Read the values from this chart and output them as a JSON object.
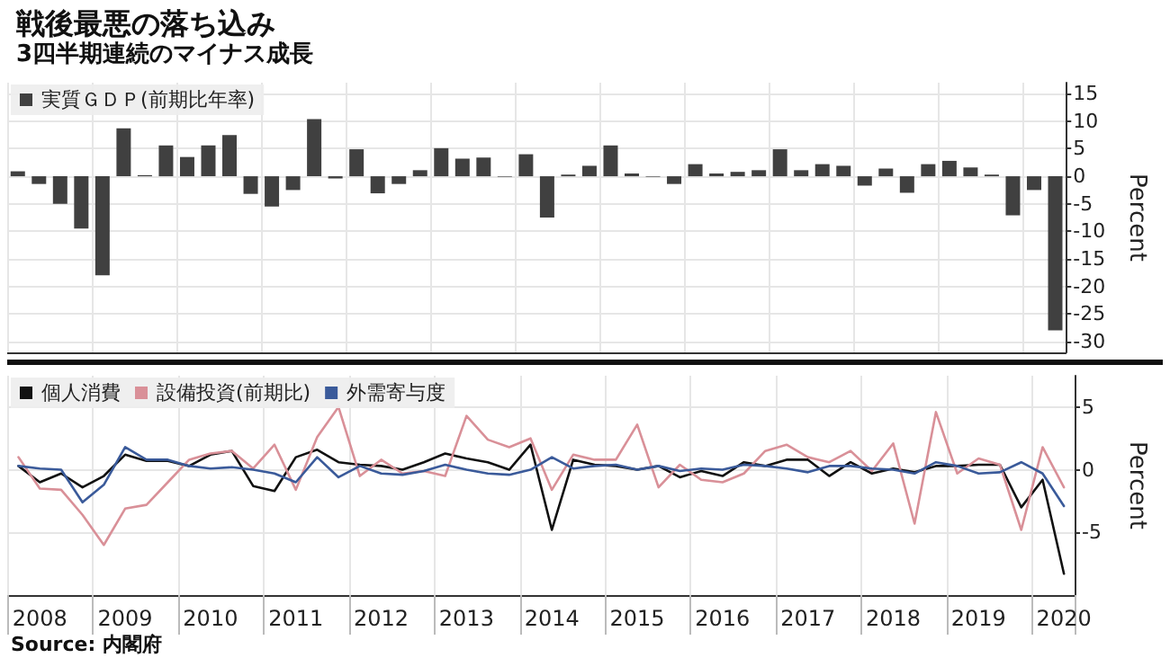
{
  "chart_data": [
    {
      "type": "bar",
      "title": "戦後最悪の落ち込み",
      "subtitle": "3四半期連続のマイナス成長",
      "ylabel": "Percent",
      "categories": [
        null,
        "2008",
        null,
        null,
        null,
        "2009",
        null,
        null,
        null,
        "2010",
        null,
        null,
        null,
        "2011",
        null,
        null,
        null,
        "2012",
        null,
        null,
        null,
        "2013",
        null,
        null,
        null,
        "2014",
        null,
        null,
        null,
        "2015",
        null,
        null,
        null,
        "2016",
        null,
        null,
        null,
        "2017",
        null,
        null,
        null,
        "2018",
        null,
        null,
        null,
        "2019",
        null,
        null,
        null,
        "2020"
      ],
      "series": [
        {
          "name": "実質ＧＤＰ(前期比年率)",
          "color": "#404040",
          "values": [
            0.9,
            -1.4,
            -5,
            -9.5,
            -18,
            8.7,
            0.2,
            5.6,
            3.5,
            5.6,
            7.5,
            -3.2,
            -5.5,
            -2.5,
            10.4,
            -0.4,
            4.9,
            -3.1,
            -1.4,
            1.1,
            5.1,
            3.2,
            3.4,
            -0.1,
            4.0,
            -7.5,
            0.3,
            1.9,
            5.6,
            0.5,
            -0.1,
            -1.4,
            2.2,
            0.5,
            0.8,
            1.1,
            4.9,
            1.1,
            2.2,
            1.9,
            -1.7,
            1.4,
            -3.0,
            2.2,
            2.8,
            1.6,
            0.3,
            -7.1,
            -2.5,
            -28
          ]
        }
      ],
      "ylim": [
        -32,
        17
      ],
      "yticks": [
        15,
        10,
        5,
        0,
        -5,
        -10,
        -15,
        -20,
        -25,
        -30
      ],
      "grid": true,
      "legend": "top left",
      "tick_labels": "y"
    },
    {
      "type": "line",
      "ylabel": "Percent",
      "annotations": [
        "Source: 内閣府"
      ],
      "categories": [
        null,
        "2008",
        null,
        null,
        null,
        "2009",
        null,
        null,
        null,
        "2010",
        null,
        null,
        null,
        "2011",
        null,
        null,
        null,
        "2012",
        null,
        null,
        null,
        "2013",
        null,
        null,
        null,
        "2014",
        null,
        null,
        null,
        "2015",
        null,
        null,
        null,
        "2016",
        null,
        null,
        null,
        "2017",
        null,
        null,
        null,
        "2018",
        null,
        null,
        null,
        "2019",
        null,
        null,
        null,
        "2020"
      ],
      "series": [
        {
          "name": "個人消費",
          "color": "#111111",
          "values": [
            0.3,
            -1.0,
            -0.3,
            -1.4,
            -0.5,
            1.2,
            0.7,
            0.7,
            0.3,
            1.2,
            1.5,
            -1.3,
            -1.7,
            1.0,
            1.6,
            0.6,
            0.4,
            0.3,
            0,
            0.6,
            1.3,
            0.9,
            0.6,
            0,
            2.0,
            -4.8,
            0.8,
            0.4,
            0.3,
            0,
            0.3,
            -0.6,
            -0.1,
            -0.5,
            0.6,
            0.3,
            0.8,
            0.8,
            -0.5,
            0.6,
            -0.3,
            0.1,
            -0.2,
            0.3,
            0.3,
            0.4,
            0.4,
            -3.0,
            -0.8,
            -8.3
          ]
        },
        {
          "name": "設備投資(前期比)",
          "color": "#d99098",
          "values": [
            1.0,
            -1.5,
            -1.6,
            -3.6,
            -6.0,
            -3.1,
            -2.8,
            -1.0,
            0.8,
            1.3,
            1.5,
            0.1,
            2.0,
            -1.6,
            2.6,
            5.0,
            -0.5,
            0.8,
            -0.3,
            -0.1,
            -0.5,
            4.3,
            2.4,
            1.8,
            2.5,
            -1.6,
            1.2,
            0.8,
            0.8,
            3.6,
            -1.4,
            0.4,
            -0.8,
            -1.0,
            -0.3,
            1.5,
            2.0,
            1.0,
            0.6,
            1.5,
            -0.1,
            2.1,
            -4.3,
            4.6,
            -0.3,
            0.9,
            0.4,
            -4.8,
            1.8,
            -1.4
          ]
        },
        {
          "name": "外需寄与度",
          "color": "#3a5a9a",
          "values": [
            0.3,
            0.1,
            0,
            -2.6,
            -1.2,
            1.8,
            0.8,
            0.8,
            0.3,
            0.1,
            0.2,
            0,
            -0.3,
            -1.0,
            1.0,
            -0.6,
            0.3,
            -0.3,
            -0.4,
            -0.1,
            0.4,
            0,
            -0.3,
            -0.4,
            0,
            1.0,
            0.1,
            0.3,
            0.4,
            0,
            0.3,
            -0.1,
            0.1,
            0,
            0.4,
            0.3,
            0.1,
            -0.2,
            0.3,
            0.3,
            0.1,
            0,
            -0.3,
            0.6,
            0.3,
            -0.3,
            -0.2,
            0.6,
            -0.3,
            -2.9
          ]
        }
      ],
      "ylim": [
        -10,
        7.5
      ],
      "yticks": [
        5,
        0,
        -5
      ],
      "grid": true,
      "legend": "top left",
      "marker": "none",
      "line_style": "solid"
    }
  ]
}
